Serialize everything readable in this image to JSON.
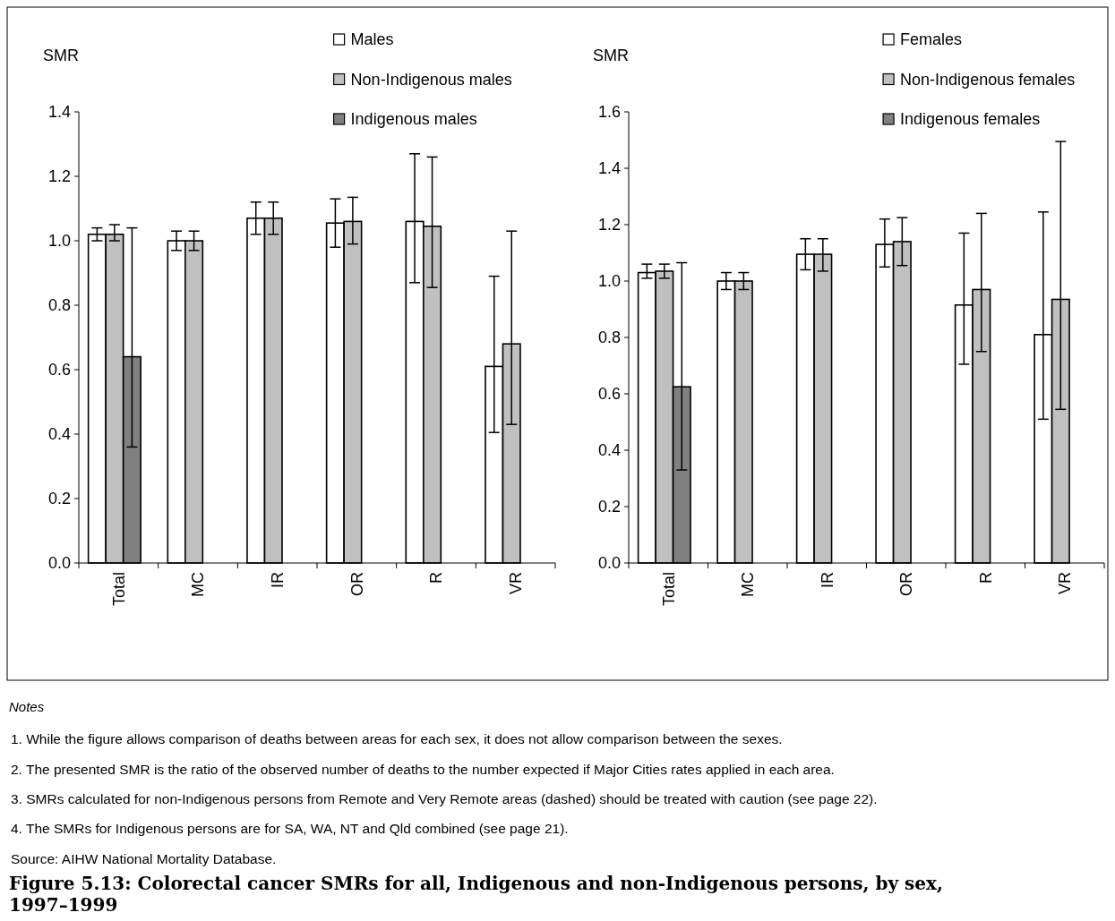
{
  "chart_data": [
    {
      "type": "bar",
      "title": "Figure 5.13: Colorectal cancer SMRs for all, Indigenous and non-Indigenous persons, by sex, 1997–1999",
      "ylabel": "SMR",
      "categories": [
        "Total",
        "MC",
        "IR",
        "OR",
        "R",
        "VR"
      ],
      "ylim": [
        0,
        1.4
      ],
      "yticks": [
        {
          "value": 0,
          "label": "0.0"
        },
        {
          "value": 0.2,
          "label": "0.2"
        },
        {
          "value": 0.4,
          "label": "0.4"
        },
        {
          "value": 0.6,
          "label": "0.6"
        },
        {
          "value": 0.8,
          "label": "0.8"
        },
        {
          "value": 1.0,
          "label": "1.0"
        },
        {
          "value": 1.2,
          "label": "1.2"
        },
        {
          "value": 1.4,
          "label": "1.4"
        }
      ],
      "grid": false,
      "legend": "top",
      "series": [
        {
          "name": "Males",
          "color": "#ffffff",
          "values": [
            1.02,
            1.0,
            1.07,
            1.055,
            1.06,
            0.61
          ],
          "errors": [
            [
              1.0,
              1.04
            ],
            [
              0.97,
              1.03
            ],
            [
              1.02,
              1.12
            ],
            [
              0.98,
              1.13
            ],
            [
              0.87,
              1.27
            ],
            [
              0.405,
              0.89
            ]
          ]
        },
        {
          "name": "Non-Indigenous males",
          "color": "#c0c0c0",
          "values": [
            1.02,
            1.0,
            1.07,
            1.06,
            1.045,
            0.68
          ],
          "errors": [
            [
              1.0,
              1.05
            ],
            [
              0.97,
              1.03
            ],
            [
              1.02,
              1.12
            ],
            [
              0.99,
              1.135
            ],
            [
              0.855,
              1.26
            ],
            [
              0.43,
              1.03
            ]
          ]
        },
        {
          "name": "Indigenous males",
          "color": "#808080",
          "values": [
            0.64,
            null,
            null,
            null,
            null,
            null
          ],
          "errors": [
            [
              0.36,
              1.04
            ],
            null,
            null,
            null,
            null,
            null
          ]
        }
      ],
      "annotations": [
        "Notes",
        "1.  While the figure allows comparison of deaths between areas for each sex, it does not allow comparison between the sexes.",
        "2.  The presented SMR is the ratio of the observed number of deaths to the number expected if Major Cities rates applied in each area.",
        "3.  SMRs calculated for non-Indigenous persons from Remote and Very Remote areas (dashed) should be treated with caution (see page 22).",
        "4.  The SMRs for Indigenous persons are for SA, WA, NT and Qld combined (see page 21).",
        "Source: AIHW National Mortality Database."
      ]
    },
    {
      "type": "bar",
      "ylabel": "SMR",
      "categories": [
        "Total",
        "MC",
        "IR",
        "OR",
        "R",
        "VR"
      ],
      "ylim": [
        0,
        1.6
      ],
      "yticks": [
        {
          "value": 0,
          "label": "0.0"
        },
        {
          "value": 0.2,
          "label": "0.2"
        },
        {
          "value": 0.4,
          "label": "0.4"
        },
        {
          "value": 0.6,
          "label": "0.6"
        },
        {
          "value": 0.8,
          "label": "0.8"
        },
        {
          "value": 1.0,
          "label": "1.0"
        },
        {
          "value": 1.2,
          "label": "1.2"
        },
        {
          "value": 1.4,
          "label": "1.4"
        },
        {
          "value": 1.6,
          "label": "1.6"
        }
      ],
      "grid": false,
      "legend": "top",
      "series": [
        {
          "name": "Females",
          "color": "#ffffff",
          "values": [
            1.03,
            1.0,
            1.095,
            1.13,
            0.915,
            0.81
          ],
          "errors": [
            [
              1.01,
              1.06
            ],
            [
              0.97,
              1.03
            ],
            [
              1.04,
              1.15
            ],
            [
              1.05,
              1.22
            ],
            [
              0.705,
              1.17
            ],
            [
              0.51,
              1.245
            ]
          ]
        },
        {
          "name": "Non-Indigenous females",
          "color": "#c0c0c0",
          "values": [
            1.035,
            1.0,
            1.095,
            1.14,
            0.97,
            0.935
          ],
          "errors": [
            [
              1.01,
              1.06
            ],
            [
              0.97,
              1.03
            ],
            [
              1.035,
              1.15
            ],
            [
              1.055,
              1.225
            ],
            [
              0.75,
              1.24
            ],
            [
              0.545,
              1.495
            ]
          ]
        },
        {
          "name": "Indigenous females",
          "color": "#808080",
          "values": [
            0.625,
            null,
            null,
            null,
            null,
            null
          ],
          "errors": [
            [
              0.33,
              1.065
            ],
            null,
            null,
            null,
            null,
            null
          ]
        }
      ]
    }
  ]
}
